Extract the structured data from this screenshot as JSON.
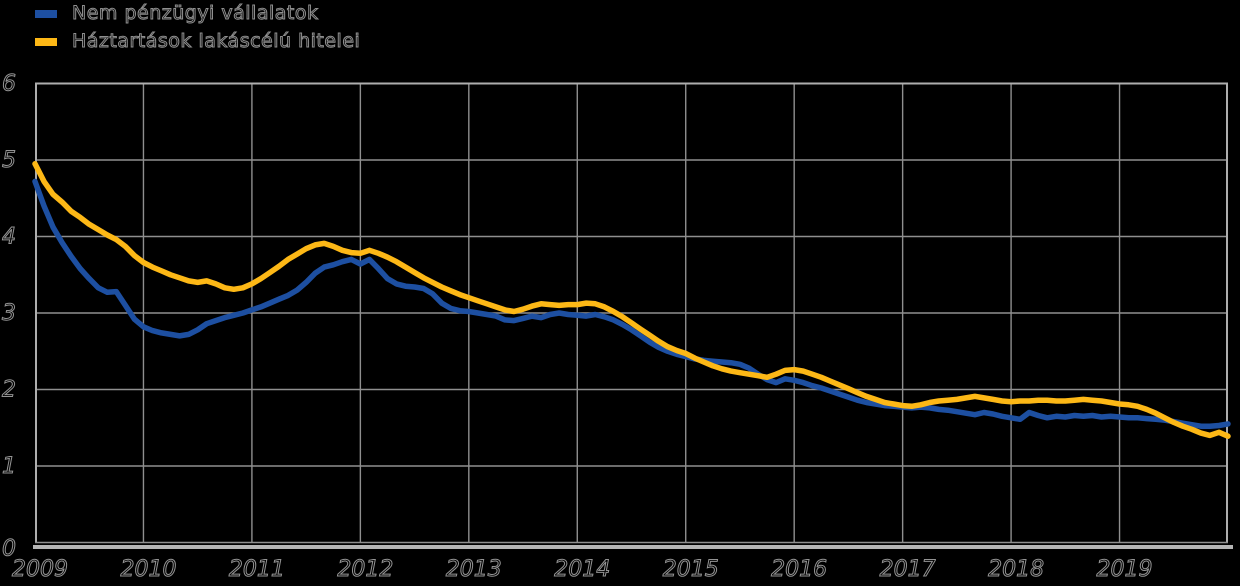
{
  "page": {
    "background": "#000000"
  },
  "legend": {
    "items": [
      {
        "label": "Nem pénzügyi vállalatok",
        "color": "#1d4fa1"
      },
      {
        "label": "Háztartások lakáscélú hitelei",
        "color": "#fdb816"
      }
    ]
  },
  "chart_data": {
    "type": "line",
    "title": "",
    "xlabel": "",
    "ylabel": "",
    "freq": "monthly",
    "x_start": "2009-01",
    "x_end": "2020-01",
    "x_tick_labels": [
      "2009",
      "2010",
      "2011",
      "2012",
      "2013",
      "2014",
      "2015",
      "2016",
      "2017",
      "2018",
      "2019"
    ],
    "y_ticks": [
      0,
      1,
      2,
      3,
      4,
      5,
      6
    ],
    "ylim": [
      0,
      6
    ],
    "grid": true,
    "background": "#000000",
    "gridline_color": "#8f8f8f",
    "legend_position": "top-left",
    "series": [
      {
        "name": "Nem pénzügyi vállalatok",
        "color": "#1d4fa1",
        "values": [
          4.72,
          4.4,
          4.12,
          3.92,
          3.74,
          3.58,
          3.45,
          3.33,
          3.27,
          3.28,
          3.1,
          2.92,
          2.82,
          2.77,
          2.74,
          2.72,
          2.7,
          2.72,
          2.78,
          2.86,
          2.9,
          2.94,
          2.97,
          3.0,
          3.04,
          3.08,
          3.13,
          3.18,
          3.23,
          3.3,
          3.4,
          3.52,
          3.6,
          3.63,
          3.67,
          3.7,
          3.64,
          3.7,
          3.58,
          3.45,
          3.38,
          3.35,
          3.34,
          3.32,
          3.25,
          3.13,
          3.06,
          3.03,
          3.02,
          3.0,
          2.98,
          2.96,
          2.91,
          2.9,
          2.93,
          2.96,
          2.94,
          2.98,
          3.0,
          2.98,
          2.97,
          2.96,
          2.98,
          2.95,
          2.91,
          2.85,
          2.78,
          2.7,
          2.62,
          2.55,
          2.5,
          2.46,
          2.43,
          2.4,
          2.38,
          2.37,
          2.36,
          2.35,
          2.33,
          2.28,
          2.2,
          2.13,
          2.09,
          2.14,
          2.12,
          2.09,
          2.05,
          2.02,
          1.98,
          1.94,
          1.9,
          1.86,
          1.83,
          1.81,
          1.79,
          1.78,
          1.77,
          1.76,
          1.77,
          1.76,
          1.74,
          1.73,
          1.71,
          1.69,
          1.67,
          1.7,
          1.68,
          1.65,
          1.63,
          1.61,
          1.7,
          1.66,
          1.63,
          1.65,
          1.64,
          1.66,
          1.65,
          1.66,
          1.64,
          1.65,
          1.64,
          1.63,
          1.63,
          1.62,
          1.61,
          1.6,
          1.58,
          1.56,
          1.54,
          1.52,
          1.52,
          1.53,
          1.55
        ]
      },
      {
        "name": "Háztartások lakáscélú hitelei",
        "color": "#fdb816",
        "values": [
          4.95,
          4.72,
          4.55,
          4.45,
          4.33,
          4.25,
          4.16,
          4.09,
          4.02,
          3.96,
          3.87,
          3.75,
          3.66,
          3.6,
          3.55,
          3.5,
          3.46,
          3.42,
          3.4,
          3.42,
          3.38,
          3.33,
          3.31,
          3.33,
          3.38,
          3.45,
          3.53,
          3.61,
          3.7,
          3.77,
          3.84,
          3.89,
          3.91,
          3.87,
          3.82,
          3.79,
          3.78,
          3.82,
          3.78,
          3.73,
          3.67,
          3.6,
          3.53,
          3.46,
          3.4,
          3.34,
          3.29,
          3.24,
          3.2,
          3.16,
          3.12,
          3.08,
          3.04,
          3.02,
          3.05,
          3.09,
          3.12,
          3.11,
          3.1,
          3.11,
          3.11,
          3.13,
          3.12,
          3.08,
          3.02,
          2.95,
          2.87,
          2.79,
          2.71,
          2.63,
          2.56,
          2.51,
          2.47,
          2.41,
          2.36,
          2.31,
          2.27,
          2.24,
          2.22,
          2.2,
          2.18,
          2.16,
          2.2,
          2.25,
          2.26,
          2.24,
          2.2,
          2.16,
          2.11,
          2.06,
          2.01,
          1.96,
          1.91,
          1.87,
          1.83,
          1.81,
          1.79,
          1.78,
          1.8,
          1.83,
          1.85,
          1.86,
          1.87,
          1.89,
          1.91,
          1.89,
          1.87,
          1.85,
          1.84,
          1.85,
          1.85,
          1.86,
          1.86,
          1.85,
          1.85,
          1.86,
          1.87,
          1.86,
          1.85,
          1.83,
          1.81,
          1.8,
          1.78,
          1.74,
          1.69,
          1.63,
          1.57,
          1.52,
          1.48,
          1.43,
          1.4,
          1.44,
          1.39
        ]
      }
    ]
  }
}
